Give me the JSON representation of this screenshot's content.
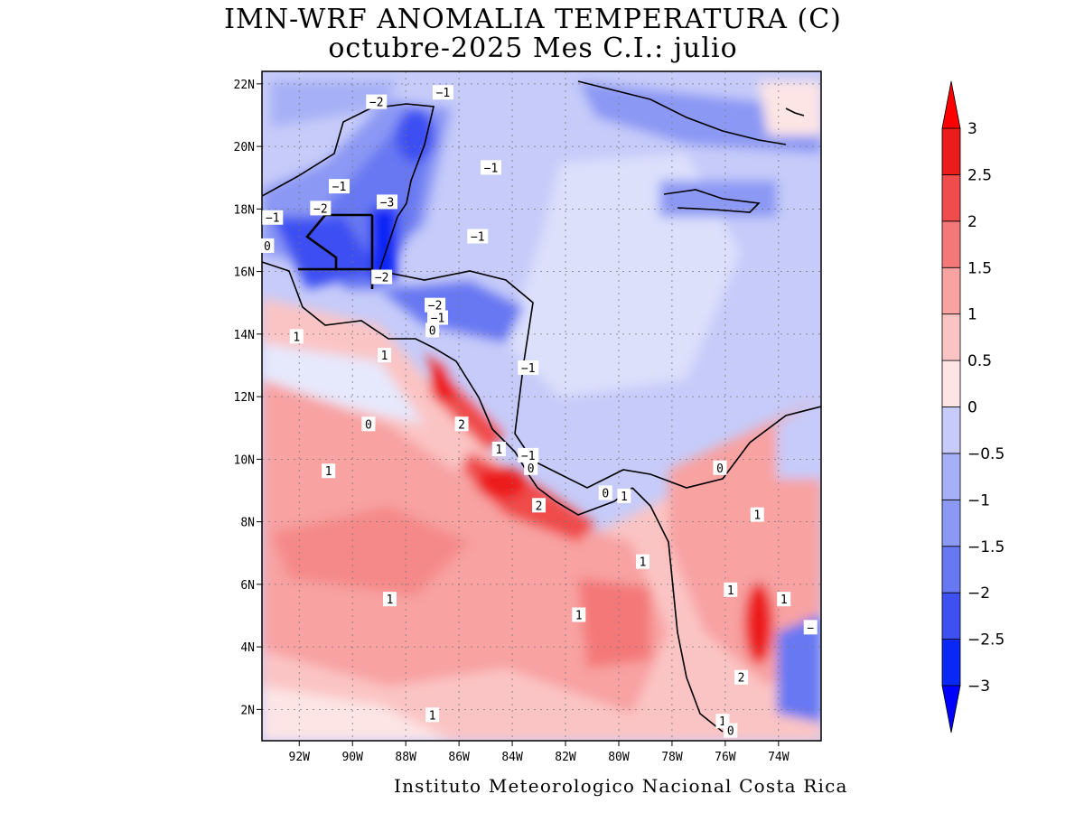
{
  "title": {
    "line1": "IMN-WRF  ANOMALIA TEMPERATURA (C)",
    "line2": "octubre-2025 Mes C.I.: julio"
  },
  "credit": "Instituto Meteorologico Nacional Costa Rica",
  "map": {
    "lon_range": [
      -93.4,
      -72.4
    ],
    "lat_range": [
      1.0,
      22.4
    ],
    "x_ticks": [
      "92W",
      "90W",
      "88W",
      "86W",
      "84W",
      "82W",
      "80W",
      "78W",
      "76W",
      "74W"
    ],
    "x_tick_values": [
      -92,
      -90,
      -88,
      -86,
      -84,
      -82,
      -80,
      -78,
      -76,
      -74
    ],
    "y_ticks": [
      "2N",
      "4N",
      "6N",
      "8N",
      "10N",
      "12N",
      "14N",
      "16N",
      "18N",
      "20N",
      "22N"
    ],
    "y_tick_values": [
      2,
      4,
      6,
      8,
      10,
      12,
      14,
      16,
      18,
      20,
      22
    ],
    "contour_labels": [
      {
        "text": "-2",
        "lon": -89.1,
        "lat": 21.4
      },
      {
        "text": "-1",
        "lon": -86.6,
        "lat": 21.7
      },
      {
        "text": "-1",
        "lon": -84.8,
        "lat": 19.3
      },
      {
        "text": "-1",
        "lon": -90.5,
        "lat": 18.7
      },
      {
        "text": "-3",
        "lon": -88.7,
        "lat": 18.2
      },
      {
        "text": "-2",
        "lon": -91.2,
        "lat": 18.0
      },
      {
        "text": "-1",
        "lon": -93.0,
        "lat": 17.7
      },
      {
        "text": "0",
        "lon": -93.2,
        "lat": 16.8
      },
      {
        "text": "-1",
        "lon": -85.3,
        "lat": 17.1
      },
      {
        "text": "-2",
        "lon": -88.9,
        "lat": 15.8
      },
      {
        "text": "-2",
        "lon": -86.9,
        "lat": 14.9
      },
      {
        "text": "-1",
        "lon": -86.8,
        "lat": 14.5
      },
      {
        "text": "0",
        "lon": -87.0,
        "lat": 14.1
      },
      {
        "text": "1",
        "lon": -92.1,
        "lat": 13.9
      },
      {
        "text": "1",
        "lon": -88.8,
        "lat": 13.3
      },
      {
        "text": "-1",
        "lon": -83.4,
        "lat": 12.9
      },
      {
        "text": "0",
        "lon": -89.4,
        "lat": 11.1
      },
      {
        "text": "2",
        "lon": -85.9,
        "lat": 11.1
      },
      {
        "text": "1",
        "lon": -84.5,
        "lat": 10.3
      },
      {
        "text": "-1",
        "lon": -83.4,
        "lat": 10.1
      },
      {
        "text": "0",
        "lon": -83.3,
        "lat": 9.7
      },
      {
        "text": "1",
        "lon": -90.9,
        "lat": 9.6
      },
      {
        "text": "0",
        "lon": -80.5,
        "lat": 8.9
      },
      {
        "text": "1",
        "lon": -79.8,
        "lat": 8.8
      },
      {
        "text": "2",
        "lon": -83.0,
        "lat": 8.5
      },
      {
        "text": "1",
        "lon": -74.8,
        "lat": 8.2
      },
      {
        "text": "0",
        "lon": -76.2,
        "lat": 9.7
      },
      {
        "text": "1",
        "lon": -79.1,
        "lat": 6.7
      },
      {
        "text": "1",
        "lon": -88.6,
        "lat": 5.5
      },
      {
        "text": "1",
        "lon": -81.5,
        "lat": 5.0
      },
      {
        "text": "1",
        "lon": -75.8,
        "lat": 5.8
      },
      {
        "text": "1",
        "lon": -73.8,
        "lat": 5.5
      },
      {
        "text": "-",
        "lon": -72.8,
        "lat": 4.6
      },
      {
        "text": "2",
        "lon": -75.4,
        "lat": 3.0
      },
      {
        "text": "1",
        "lon": -87.0,
        "lat": 1.8
      },
      {
        "text": "1",
        "lon": -76.1,
        "lat": 1.6
      },
      {
        "text": "0",
        "lon": -75.8,
        "lat": 1.3
      }
    ]
  },
  "colorbar": {
    "levels": [
      -3,
      -2.5,
      -2,
      -1.5,
      -1,
      -0.5,
      0,
      0.5,
      1,
      1.5,
      2,
      2.5,
      3
    ],
    "labels": [
      "-3",
      "-2.5",
      "-2",
      "-1.5",
      "-1",
      "-0.5",
      "0",
      "0.5",
      "1",
      "1.5",
      "2",
      "2.5",
      "3"
    ],
    "colors": [
      "#0a28f5",
      "#3e50f2",
      "#6878f2",
      "#8b98f4",
      "#a6b0f6",
      "#c6cbf9",
      "#e6e8fc",
      "#fde5e5",
      "#fbc4c4",
      "#f8a2a2",
      "#f47878",
      "#f04c4c",
      "#ed1c1c"
    ],
    "under_color": "#0000ff",
    "over_color": "#ff0000"
  }
}
